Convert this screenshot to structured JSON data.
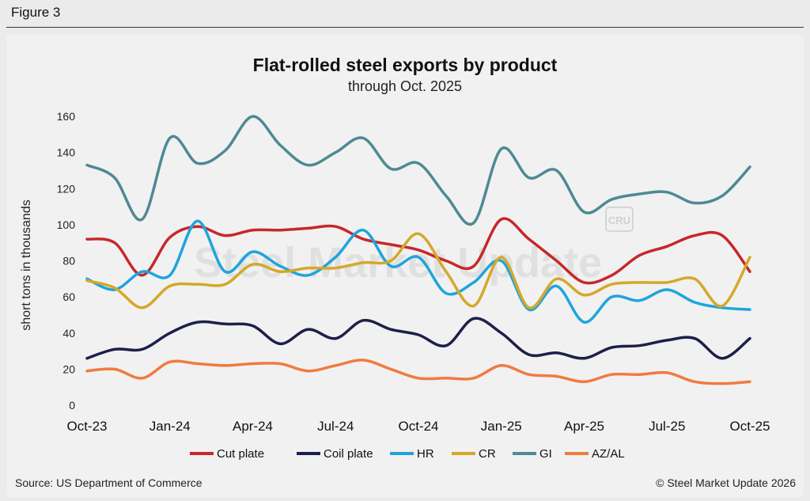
{
  "figure_label": "Figure 3",
  "source": "Source: US Department of Commerce",
  "copyright": "© Steel Market Update 2026",
  "watermark": "Steel Market Update",
  "watermark_badge": "CRU",
  "chart_data": {
    "type": "line",
    "title": "Flat-rolled steel exports by product",
    "subtitle": "through Oct. 2025",
    "xlabel": "",
    "ylabel": "short tons in thousands",
    "ylim": [
      0,
      160
    ],
    "yticks": [
      0,
      20,
      40,
      60,
      80,
      100,
      120,
      140,
      160
    ],
    "categories": [
      "Oct-23",
      "Nov-23",
      "Dec-23",
      "Jan-24",
      "Feb-24",
      "Mar-24",
      "Apr-24",
      "May-24",
      "Jun-24",
      "Jul-24",
      "Aug-24",
      "Sep-24",
      "Oct-24",
      "Nov-24",
      "Dec-24",
      "Jan-25",
      "Feb-25",
      "Mar-25",
      "Apr-25",
      "May-25",
      "Jun-25",
      "Jul-25",
      "Aug-25",
      "Sep-25",
      "Oct-25"
    ],
    "x_tick_labels": [
      "Oct-23",
      "Jan-24",
      "Apr-24",
      "Jul-24",
      "Oct-24",
      "Jan-25",
      "Apr-25",
      "Jul-25",
      "Oct-25"
    ],
    "grid": false,
    "legend_position": "bottom",
    "series": [
      {
        "name": "Cut plate",
        "color": "#c6282b",
        "values": [
          92,
          90,
          72,
          93,
          99,
          94,
          97,
          97,
          98,
          99,
          92,
          89,
          86,
          80,
          77,
          103,
          92,
          80,
          68,
          72,
          83,
          88,
          94,
          94,
          74
        ]
      },
      {
        "name": "Coil plate",
        "color": "#1d1f4b",
        "values": [
          26,
          31,
          31,
          40,
          46,
          45,
          44,
          34,
          42,
          37,
          47,
          42,
          39,
          33,
          48,
          40,
          28,
          29,
          26,
          32,
          33,
          36,
          37,
          26,
          37
        ]
      },
      {
        "name": "HR",
        "color": "#1fa4dc",
        "values": [
          70,
          64,
          74,
          72,
          102,
          74,
          85,
          77,
          72,
          82,
          97,
          77,
          82,
          62,
          68,
          80,
          53,
          66,
          46,
          60,
          58,
          64,
          57,
          54,
          53
        ]
      },
      {
        "name": "CR",
        "color": "#d4a82a",
        "values": [
          69,
          65,
          54,
          66,
          67,
          67,
          78,
          74,
          76,
          76,
          79,
          80,
          95,
          74,
          55,
          82,
          54,
          70,
          61,
          67,
          68,
          68,
          70,
          55,
          82
        ]
      },
      {
        "name": "GI",
        "color": "#4e8a93",
        "values": [
          133,
          126,
          103,
          148,
          134,
          141,
          160,
          144,
          133,
          140,
          148,
          131,
          134,
          116,
          101,
          142,
          126,
          130,
          107,
          114,
          117,
          118,
          112,
          116,
          132
        ]
      },
      {
        "name": "AZ/AL",
        "color": "#f07b3f",
        "values": [
          19,
          20,
          15,
          24,
          23,
          22,
          23,
          23,
          19,
          22,
          25,
          20,
          15,
          15,
          15,
          22,
          17,
          16,
          13,
          17,
          17,
          18,
          13,
          12,
          13
        ]
      }
    ]
  }
}
